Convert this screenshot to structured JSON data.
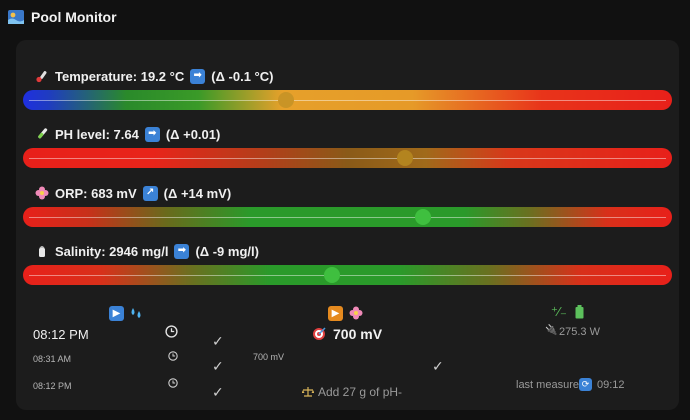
{
  "header": {
    "title": "Pool Monitor",
    "icon": "pool-icon"
  },
  "sensors": [
    {
      "name": "temperature",
      "icon": "thermometer-icon",
      "label": "Temperature: 19.2 °C",
      "trend_icon": "arrow-right-icon",
      "trend_glyph": "➡",
      "delta": "(Δ -0.1 °C)",
      "level": 0.405,
      "knob_color": "#d4a12a"
    },
    {
      "name": "ph",
      "icon": "test-tube-icon",
      "label": "PH level: 7.64",
      "trend_icon": "arrow-right-icon",
      "trend_glyph": "➡",
      "delta": "(Δ +0.01)",
      "level": 0.588,
      "knob_color": "#b88a20"
    },
    {
      "name": "orp",
      "icon": "flower-icon",
      "label": "ORP: 683 mV",
      "trend_icon": "arrow-up-right-icon",
      "trend_glyph": "↗",
      "delta": "(Δ +14 mV)",
      "level": 0.617,
      "knob_color": "#3fbf3f"
    },
    {
      "name": "salinity",
      "icon": "salt-shaker-icon",
      "label": "Salinity: 2946 mg/l",
      "trend_icon": "arrow-right-icon",
      "trend_glyph": "➡",
      "delta": "(Δ -9 mg/l)",
      "level": 0.476,
      "knob_color": "#3fbf3f"
    }
  ],
  "colors": {
    "green": "#2a9a2a",
    "red": "#e8201a",
    "orange": "#e6a02a",
    "blue": "#1f2fe0"
  },
  "pump": {
    "icon": "play-icon",
    "icon2": "droplets-icon",
    "current_time": "08:12  PM",
    "history": [
      {
        "time": "08:31  AM"
      },
      {
        "time": "08:12  PM"
      }
    ]
  },
  "chlorinator": {
    "icon": "play-icon",
    "icon2": "flower-icon",
    "target_icon": "target-icon",
    "target": "700 mV",
    "setpoint_small": "700 mV",
    "advice_icon": "scale-icon",
    "advice": "Add 27 g of pH-"
  },
  "power": {
    "icon1": "power-ratio-icon",
    "icon2": "battery-icon",
    "plug_icon": "plug-icon",
    "watts": "275.3 W",
    "last_measure_label": "last measure",
    "last_measure_icon": "refresh-icon",
    "last_measure_time": "09:12"
  }
}
